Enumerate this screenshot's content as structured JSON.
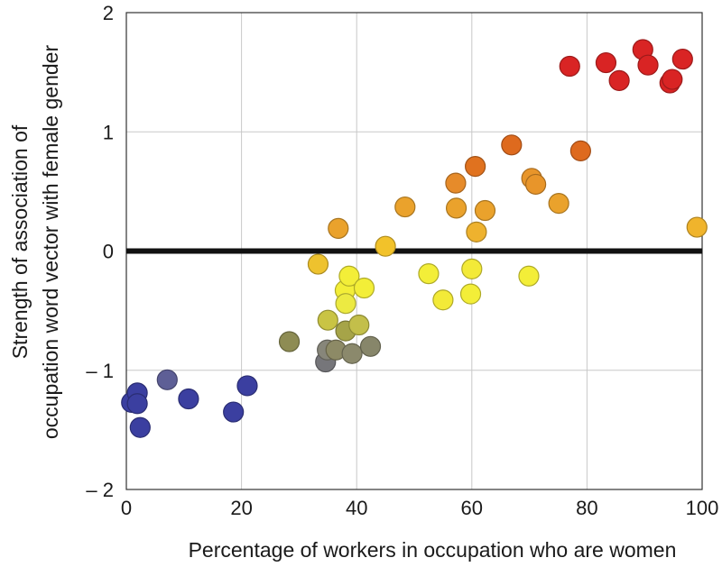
{
  "chart_data": {
    "type": "scatter",
    "title": "",
    "xlabel": "Percentage of workers in occupation who are women",
    "ylabel_lines": [
      "Strength of association of",
      "occupation word vector with female gender"
    ],
    "xlim": [
      0,
      100
    ],
    "ylim": [
      -2,
      2
    ],
    "x_ticks": [
      0,
      20,
      40,
      60,
      80,
      100
    ],
    "y_ticks": [
      {
        "value": 2,
        "label": "2"
      },
      {
        "value": 1,
        "label": "1"
      },
      {
        "value": 0,
        "label": "0"
      },
      {
        "value": -1,
        "label": "– 1"
      },
      {
        "value": -2,
        "label": "– 2"
      }
    ],
    "grid": true,
    "reference_line_y": 0,
    "points": [
      {
        "x": 0.9,
        "y": -1.27,
        "color": "#3b3fa0"
      },
      {
        "x": 1.9,
        "y": -1.19,
        "color": "#3b3fa0"
      },
      {
        "x": 1.9,
        "y": -1.28,
        "color": "#3b3fa0"
      },
      {
        "x": 2.4,
        "y": -1.48,
        "color": "#3b3fa0"
      },
      {
        "x": 7.1,
        "y": -1.08,
        "color": "#5e5f96"
      },
      {
        "x": 10.8,
        "y": -1.24,
        "color": "#3b3fa0"
      },
      {
        "x": 18.6,
        "y": -1.35,
        "color": "#3b3fa0"
      },
      {
        "x": 21.0,
        "y": -1.13,
        "color": "#3b3fa0"
      },
      {
        "x": 28.3,
        "y": -0.76,
        "color": "#8e8c54"
      },
      {
        "x": 33.3,
        "y": -0.11,
        "color": "#eec22e"
      },
      {
        "x": 34.6,
        "y": -0.93,
        "color": "#76767a"
      },
      {
        "x": 34.9,
        "y": -0.83,
        "color": "#87867a"
      },
      {
        "x": 35.0,
        "y": -0.58,
        "color": "#c9c444"
      },
      {
        "x": 36.8,
        "y": 0.19,
        "color": "#eaa22c"
      },
      {
        "x": 36.4,
        "y": -0.83,
        "color": "#8d8a66"
      },
      {
        "x": 38.0,
        "y": -0.33,
        "color": "#f3ee38"
      },
      {
        "x": 38.1,
        "y": -0.44,
        "color": "#ecea42"
      },
      {
        "x": 38.1,
        "y": -0.67,
        "color": "#a6a448"
      },
      {
        "x": 38.7,
        "y": -0.21,
        "color": "#f3ee38"
      },
      {
        "x": 39.2,
        "y": -0.86,
        "color": "#8b896c"
      },
      {
        "x": 40.4,
        "y": -0.62,
        "color": "#c3bf4a"
      },
      {
        "x": 41.3,
        "y": -0.31,
        "color": "#f3ee38"
      },
      {
        "x": 42.4,
        "y": -0.8,
        "color": "#87866a"
      },
      {
        "x": 45.0,
        "y": 0.04,
        "color": "#f2c22a"
      },
      {
        "x": 48.4,
        "y": 0.37,
        "color": "#eaa22c"
      },
      {
        "x": 52.5,
        "y": -0.19,
        "color": "#f3ee38"
      },
      {
        "x": 55.0,
        "y": -0.41,
        "color": "#f3ea38"
      },
      {
        "x": 57.2,
        "y": 0.57,
        "color": "#e68b2a"
      },
      {
        "x": 57.3,
        "y": 0.36,
        "color": "#eaa22c"
      },
      {
        "x": 59.8,
        "y": -0.36,
        "color": "#f3ee38"
      },
      {
        "x": 60.0,
        "y": -0.15,
        "color": "#f3ea38"
      },
      {
        "x": 60.6,
        "y": 0.71,
        "color": "#e0721f"
      },
      {
        "x": 60.8,
        "y": 0.16,
        "color": "#eeb22e"
      },
      {
        "x": 62.3,
        "y": 0.34,
        "color": "#eaa22c"
      },
      {
        "x": 66.9,
        "y": 0.89,
        "color": "#de6a1e"
      },
      {
        "x": 69.9,
        "y": -0.21,
        "color": "#f3ee38"
      },
      {
        "x": 70.4,
        "y": 0.61,
        "color": "#e8952a"
      },
      {
        "x": 71.1,
        "y": 0.56,
        "color": "#e8952a"
      },
      {
        "x": 75.1,
        "y": 0.4,
        "color": "#eaa22c"
      },
      {
        "x": 77.0,
        "y": 1.55,
        "color": "#d92424"
      },
      {
        "x": 78.9,
        "y": 0.84,
        "color": "#de6a1e"
      },
      {
        "x": 83.3,
        "y": 1.58,
        "color": "#d92424"
      },
      {
        "x": 85.6,
        "y": 1.43,
        "color": "#d92424"
      },
      {
        "x": 89.7,
        "y": 1.69,
        "color": "#d92424"
      },
      {
        "x": 90.6,
        "y": 1.56,
        "color": "#d92424"
      },
      {
        "x": 94.4,
        "y": 1.41,
        "color": "#d92424"
      },
      {
        "x": 94.8,
        "y": 1.44,
        "color": "#d92424"
      },
      {
        "x": 96.6,
        "y": 1.61,
        "color": "#d92424"
      },
      {
        "x": 99.1,
        "y": 0.2,
        "color": "#f0b42c"
      }
    ]
  }
}
